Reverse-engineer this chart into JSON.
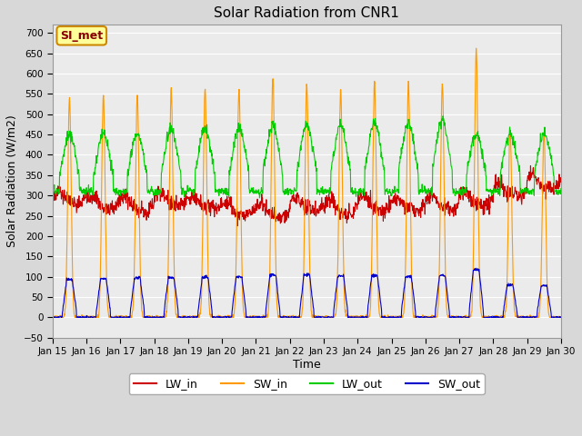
{
  "title": "Solar Radiation from CNR1",
  "xlabel": "Time",
  "ylabel": "Solar Radiation (W/m2)",
  "ylim": [
    -50,
    720
  ],
  "yticks": [
    -50,
    0,
    50,
    100,
    150,
    200,
    250,
    300,
    350,
    400,
    450,
    500,
    550,
    600,
    650,
    700
  ],
  "colors": {
    "LW_in": "#cc0000",
    "SW_in": "#ff9900",
    "LW_out": "#00cc00",
    "SW_out": "#0000cc"
  },
  "background_color": "#d8d8d8",
  "plot_background": "#ebebeb",
  "annotation_text": "SI_met",
  "annotation_box_color": "#ffff99",
  "annotation_border_color": "#cc8800",
  "sw_in_peaks": [
    540,
    547,
    550,
    563,
    565,
    563,
    592,
    578,
    557,
    583,
    578,
    575,
    658,
    460,
    457,
    0
  ],
  "lw_out_night": 310,
  "lw_out_day_peaks": [
    450,
    453,
    453,
    463,
    465,
    468,
    473,
    475,
    470,
    478,
    480,
    487,
    453,
    455,
    453,
    390
  ],
  "sw_out_peaks": [
    93,
    95,
    97,
    98,
    99,
    100,
    105,
    105,
    103,
    103,
    100,
    103,
    118,
    80,
    78,
    0
  ],
  "lw_in_base": [
    295,
    280,
    275,
    290,
    280,
    265,
    260,
    275,
    270,
    280,
    275,
    280,
    290,
    310,
    330,
    340
  ]
}
